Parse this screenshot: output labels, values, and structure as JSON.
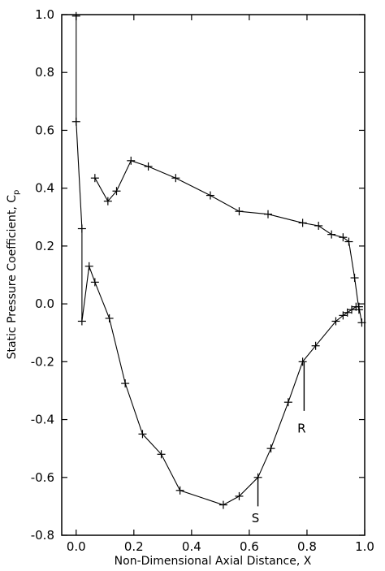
{
  "chart_data": {
    "type": "line",
    "title": "",
    "xlabel": "Non-Dimensional Axial Distance, X",
    "ylabel": "Static Pressure Coefficient, C",
    "ylabel_subscript": "p",
    "xlim": [
      -0.05,
      1.0
    ],
    "ylim": [
      -0.8,
      1.0
    ],
    "xticks": [
      "0.0",
      "0.2",
      "0.4",
      "0.6",
      "0.8",
      "1.0"
    ],
    "xtick_values": [
      0.0,
      0.2,
      0.4,
      0.6,
      0.8,
      1.0
    ],
    "yticks": [
      "1.0",
      "0.8",
      "0.6",
      "0.4",
      "0.2",
      "0.0",
      "-0.2",
      "-0.4",
      "-0.6",
      "-0.8"
    ],
    "ytick_values": [
      1.0,
      0.8,
      0.6,
      0.4,
      0.2,
      0.0,
      -0.2,
      -0.4,
      -0.6,
      -0.8
    ],
    "grid": false,
    "line_color": "#000000",
    "series": [
      {
        "points": [
          [
            0.0,
            0.995
          ],
          [
            0.0,
            0.63
          ],
          [
            0.02,
            0.26
          ],
          [
            0.02,
            -0.06
          ],
          [
            0.045,
            0.13
          ],
          [
            0.065,
            0.075
          ],
          [
            0.115,
            -0.05
          ],
          [
            0.17,
            -0.275
          ],
          [
            0.23,
            -0.45
          ],
          [
            0.295,
            -0.52
          ],
          [
            0.36,
            -0.645
          ],
          [
            0.51,
            -0.695
          ],
          [
            0.565,
            -0.665
          ],
          [
            0.63,
            -0.6
          ],
          [
            0.675,
            -0.5
          ],
          [
            0.735,
            -0.34
          ],
          [
            0.785,
            -0.2
          ],
          [
            0.83,
            -0.145
          ],
          [
            0.9,
            -0.06
          ],
          [
            0.925,
            -0.04
          ],
          [
            0.94,
            -0.03
          ],
          [
            0.955,
            -0.02
          ],
          [
            0.97,
            -0.01
          ],
          [
            0.98,
            -0.01
          ],
          [
            0.99,
            -0.065
          ]
        ]
      },
      {
        "points": [
          [
            0.065,
            0.435
          ],
          [
            0.11,
            0.355
          ],
          [
            0.14,
            0.39
          ],
          [
            0.19,
            0.495
          ],
          [
            0.25,
            0.475
          ],
          [
            0.345,
            0.435
          ],
          [
            0.465,
            0.375
          ],
          [
            0.565,
            0.32
          ],
          [
            0.665,
            0.31
          ],
          [
            0.785,
            0.28
          ],
          [
            0.84,
            0.27
          ],
          [
            0.885,
            0.24
          ],
          [
            0.925,
            0.23
          ],
          [
            0.945,
            0.215
          ],
          [
            0.965,
            0.09
          ],
          [
            0.98,
            -0.02
          ]
        ]
      }
    ],
    "annotations": [
      {
        "label": "S",
        "x": 0.63,
        "y": -0.6,
        "text_y": -0.755,
        "line_to_y": -0.7
      },
      {
        "label": "R",
        "x": 0.79,
        "y": -0.2,
        "text_y": -0.445,
        "line_to_y": -0.37
      }
    ]
  }
}
